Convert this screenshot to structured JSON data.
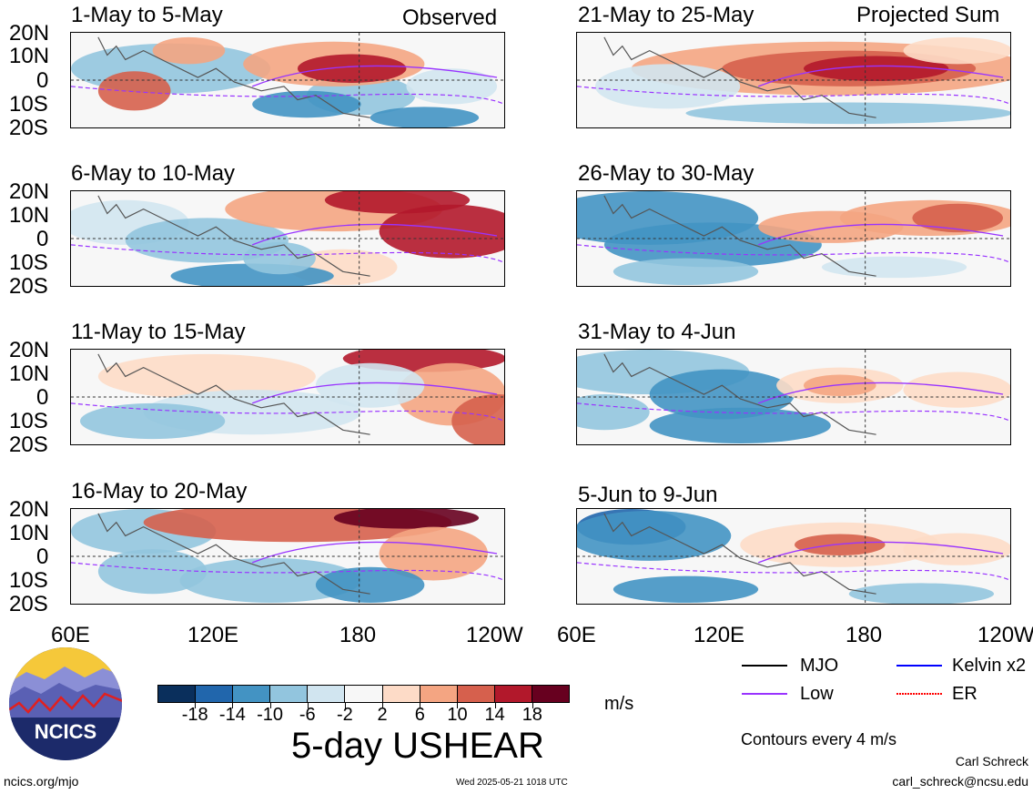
{
  "header": {
    "observed_label": "Observed",
    "projected_label": "Projected Sum"
  },
  "panels": [
    {
      "title": "1-May to 5-May",
      "group": "observed"
    },
    {
      "title": "6-May to 10-May",
      "group": "observed"
    },
    {
      "title": "11-May to 15-May",
      "group": "observed"
    },
    {
      "title": "16-May to 20-May",
      "group": "observed"
    },
    {
      "title": "21-May to 25-May",
      "group": "projected"
    },
    {
      "title": "26-May to 30-May",
      "group": "projected"
    },
    {
      "title": "31-May to 4-Jun",
      "group": "projected"
    },
    {
      "title": "5-Jun to 9-Jun",
      "group": "projected"
    }
  ],
  "axes": {
    "lat_labels": [
      "20N",
      "10N",
      "0",
      "10S",
      "20S"
    ],
    "lon_labels_left": [
      "60E",
      "120E",
      "180",
      "120W"
    ],
    "lon_labels_right": [
      "60E",
      "120E",
      "180",
      "120W"
    ]
  },
  "colorbar": {
    "ticks": [
      "-18",
      "-14",
      "-10",
      "-6",
      "-2",
      "2",
      "6",
      "10",
      "14",
      "18"
    ],
    "colors": [
      "#0a2f5c",
      "#2166ac",
      "#4393c3",
      "#92c5de",
      "#d1e5f0",
      "#f7f7f7",
      "#fddbc7",
      "#f4a582",
      "#d6604d",
      "#b2182b",
      "#67001f"
    ],
    "units": "m/s"
  },
  "legend": {
    "items": [
      {
        "label": "MJO",
        "color": "#000000",
        "style": "solid"
      },
      {
        "label": "Kelvin x2",
        "color": "#0000ff",
        "style": "solid"
      },
      {
        "label": "Low",
        "color": "#9933ff",
        "style": "solid"
      },
      {
        "label": "ER",
        "color": "#ff0000",
        "style": "dotted"
      }
    ],
    "contour_note": "Contours every 4 m/s"
  },
  "main_title": "5-day USHEAR",
  "logo": {
    "text": "NCICS"
  },
  "footer": {
    "url": "ncics.org/mjo",
    "timestamp": "Wed 2025-05-21 1018 UTC",
    "author": "Carl Schreck",
    "email": "carl_schreck@ncsu.edu"
  },
  "chart_data": {
    "type": "heatmap",
    "title": "5-day USHEAR",
    "variable": "USHEAR",
    "units": "m/s",
    "x_range": [
      "60E",
      "120W"
    ],
    "y_range": [
      "20S",
      "20N"
    ],
    "color_levels": [
      -18,
      -14,
      -10,
      -6,
      -2,
      2,
      6,
      10,
      14,
      18
    ],
    "panels": [
      {
        "title": "1-May to 5-May",
        "type": "observed"
      },
      {
        "title": "6-May to 10-May",
        "type": "observed"
      },
      {
        "title": "11-May to 15-May",
        "type": "observed"
      },
      {
        "title": "16-May to 20-May",
        "type": "observed"
      },
      {
        "title": "21-May to 25-May",
        "type": "projected"
      },
      {
        "title": "26-May to 30-May",
        "type": "projected"
      },
      {
        "title": "31-May to 4-Jun",
        "type": "projected"
      },
      {
        "title": "5-Jun to 9-Jun",
        "type": "projected"
      }
    ],
    "contour_interval": 4
  }
}
